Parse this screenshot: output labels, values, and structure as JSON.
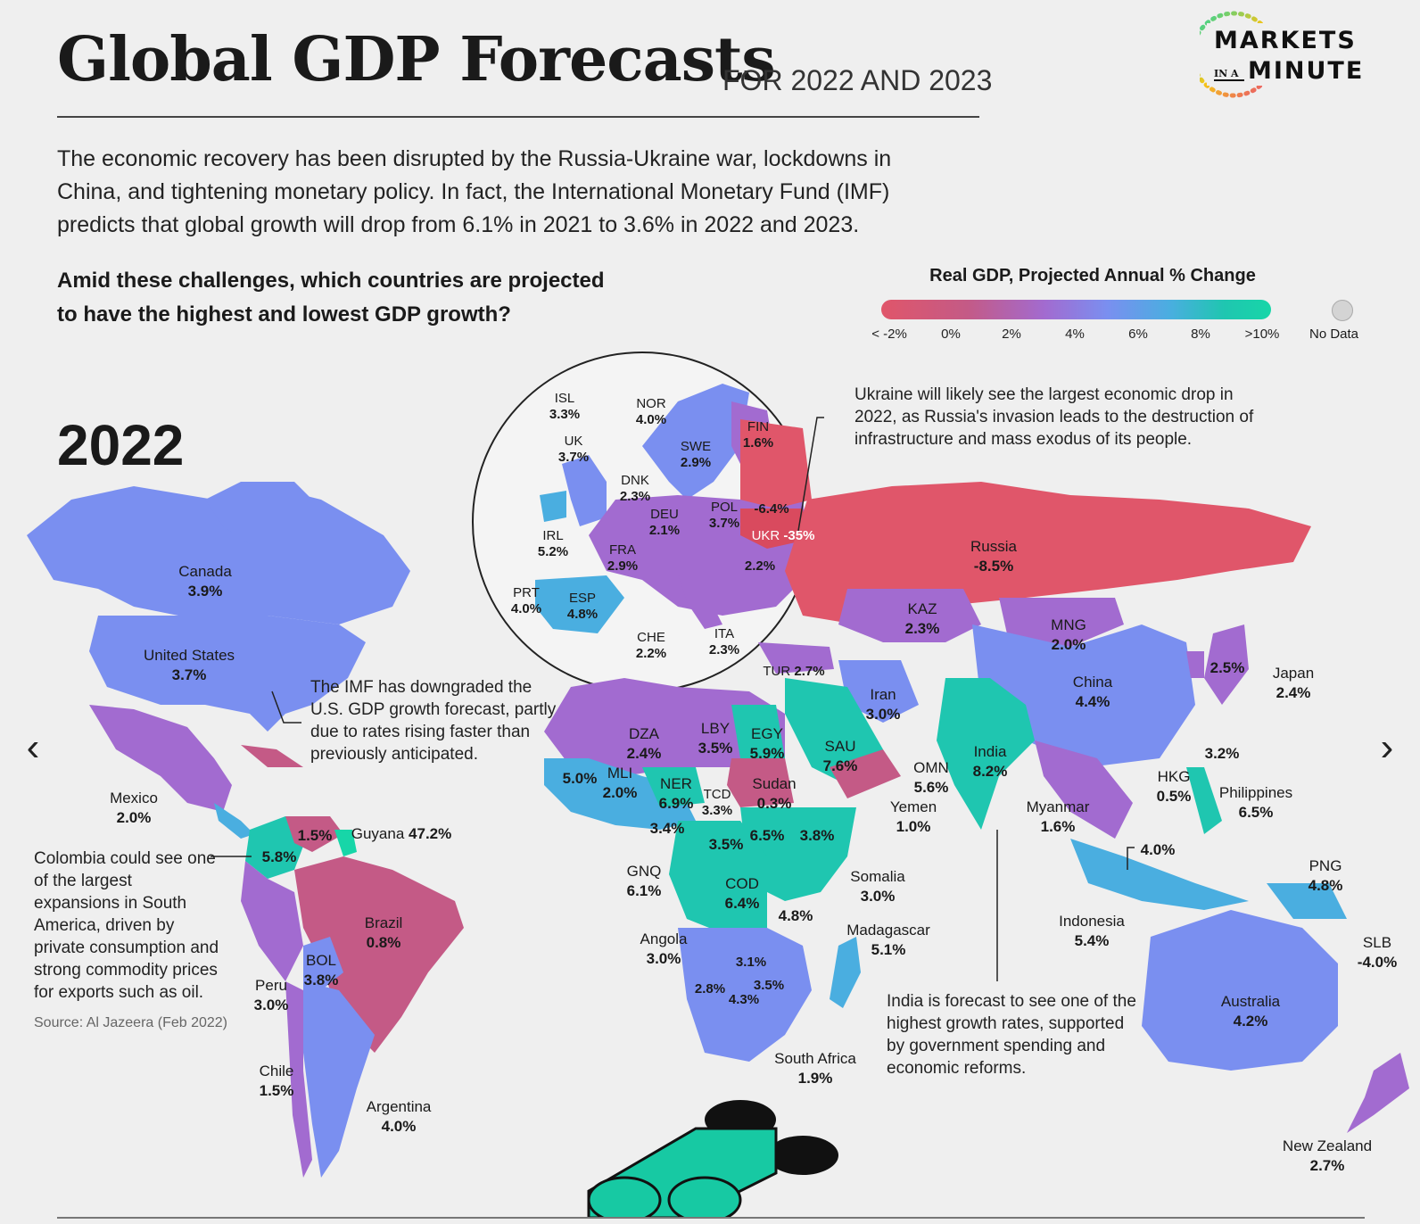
{
  "header": {
    "title": "Global GDP Forecasts",
    "subtitle": "FOR 2022 AND 2023",
    "intro": "The economic recovery has been disrupted by the Russia-Ukraine war, lockdowns in China, and tightening monetary policy. In fact, the International Monetary Fund (IMF) predicts that global growth will drop from 6.1% in 2021 to 3.6% in 2022 and 2023.",
    "question": "Amid these challenges, which countries are projected to have the highest and lowest GDP growth?"
  },
  "logo": {
    "line1": "MARKETS",
    "small": "IN A",
    "line2": "MINUTE"
  },
  "legend": {
    "title": "Real GDP, Projected Annual % Change",
    "ticks": [
      "< -2%",
      "0%",
      "2%",
      "4%",
      "6%",
      "8%",
      ">10%"
    ],
    "no_data": "No Data",
    "colors": [
      "#e0566a",
      "#c45a86",
      "#a26bd0",
      "#7a8ff0",
      "#4aaee0",
      "#1fc6b0",
      "#17d6a8"
    ],
    "no_data_color": "#d4d4d4"
  },
  "year": "2022",
  "countries": [
    {
      "name": "ISL",
      "value": "3.3%"
    },
    {
      "name": "NOR",
      "value": "4.0%"
    },
    {
      "name": "FIN",
      "value": "1.6%"
    },
    {
      "name": "UK",
      "value": "3.7%"
    },
    {
      "name": "SWE",
      "value": "2.9%"
    },
    {
      "name": "DNK",
      "value": "2.3%"
    },
    {
      "name": "DEU",
      "value": "2.1%"
    },
    {
      "name": "POL",
      "value": "3.7%"
    },
    {
      "name": "",
      "value": "-6.4%"
    },
    {
      "name": "IRL",
      "value": "5.2%"
    },
    {
      "name": "UKR",
      "value": "-35%"
    },
    {
      "name": "FRA",
      "value": "2.9%"
    },
    {
      "name": "",
      "value": "2.2%"
    },
    {
      "name": "PRT",
      "value": "4.0%"
    },
    {
      "name": "ESP",
      "value": "4.8%"
    },
    {
      "name": "CHE",
      "value": "2.2%"
    },
    {
      "name": "ITA",
      "value": "2.3%"
    },
    {
      "name": "Canada",
      "value": "3.9%"
    },
    {
      "name": "United States",
      "value": "3.7%"
    },
    {
      "name": "Mexico",
      "value": "2.0%"
    },
    {
      "name": "",
      "value": "5.8%"
    },
    {
      "name": "",
      "value": "1.5%"
    },
    {
      "name": "Guyana",
      "value": "47.2%"
    },
    {
      "name": "Brazil",
      "value": "0.8%"
    },
    {
      "name": "BOL",
      "value": "3.8%"
    },
    {
      "name": "Peru",
      "value": "3.0%"
    },
    {
      "name": "Chile",
      "value": "1.5%"
    },
    {
      "name": "Argentina",
      "value": "4.0%"
    },
    {
      "name": "Russia",
      "value": "-8.5%"
    },
    {
      "name": "KAZ",
      "value": "2.3%"
    },
    {
      "name": "MNG",
      "value": "2.0%"
    },
    {
      "name": "TUR",
      "value": "2.7%"
    },
    {
      "name": "Iran",
      "value": "3.0%"
    },
    {
      "name": "China",
      "value": "4.4%"
    },
    {
      "name": "",
      "value": "2.5%"
    },
    {
      "name": "Japan",
      "value": "2.4%"
    },
    {
      "name": "DZA",
      "value": "2.4%"
    },
    {
      "name": "LBY",
      "value": "3.5%"
    },
    {
      "name": "EGY",
      "value": "5.9%"
    },
    {
      "name": "SAU",
      "value": "7.6%"
    },
    {
      "name": "India",
      "value": "8.2%"
    },
    {
      "name": "",
      "value": "3.2%"
    },
    {
      "name": "",
      "value": "5.0%"
    },
    {
      "name": "MLI",
      "value": "2.0%"
    },
    {
      "name": "NER",
      "value": "6.9%"
    },
    {
      "name": "Sudan",
      "value": "0.3%"
    },
    {
      "name": "OMN",
      "value": "5.6%"
    },
    {
      "name": "HKG",
      "value": "0.5%"
    },
    {
      "name": "Philippines",
      "value": "6.5%"
    },
    {
      "name": "TCD",
      "value": "3.3%"
    },
    {
      "name": "Yemen",
      "value": "1.0%"
    },
    {
      "name": "Myanmar",
      "value": "1.6%"
    },
    {
      "name": "",
      "value": "3.4%"
    },
    {
      "name": "",
      "value": "3.5%"
    },
    {
      "name": "",
      "value": "6.5%"
    },
    {
      "name": "",
      "value": "3.8%"
    },
    {
      "name": "",
      "value": "4.0%"
    },
    {
      "name": "GNQ",
      "value": "6.1%"
    },
    {
      "name": "COD",
      "value": "6.4%"
    },
    {
      "name": "Somalia",
      "value": "3.0%"
    },
    {
      "name": "PNG",
      "value": "4.8%"
    },
    {
      "name": "",
      "value": "4.8%"
    },
    {
      "name": "Madagascar",
      "value": "5.1%"
    },
    {
      "name": "Indonesia",
      "value": "5.4%"
    },
    {
      "name": "SLB",
      "value": "-4.0%"
    },
    {
      "name": "Angola",
      "value": "3.0%"
    },
    {
      "name": "",
      "value": "3.1%"
    },
    {
      "name": "",
      "value": "3.5%"
    },
    {
      "name": "",
      "value": "2.8%"
    },
    {
      "name": "",
      "value": "4.3%"
    },
    {
      "name": "Australia",
      "value": "4.2%"
    },
    {
      "name": "South Africa",
      "value": "1.9%"
    },
    {
      "name": "New Zealand",
      "value": "2.7%"
    }
  ],
  "annotations": {
    "ukraine": "Ukraine will likely see the largest economic drop in 2022, as Russia's invasion leads to the destruction of infrastructure and mass exodus of its people.",
    "us": "The IMF has downgraded the U.S. GDP growth forecast, partly due to rates rising faster than previously anticipated.",
    "colombia": "Colombia could see one of the largest expansions in South America, driven by private consumption and strong commodity prices for exports such as oil.",
    "india": "India is forecast to see one of the highest growth rates, supported by government spending and economic reforms."
  },
  "source": "Source: Al Jazeera (Feb 2022)",
  "nav": {
    "prev": "‹",
    "next": "›"
  }
}
